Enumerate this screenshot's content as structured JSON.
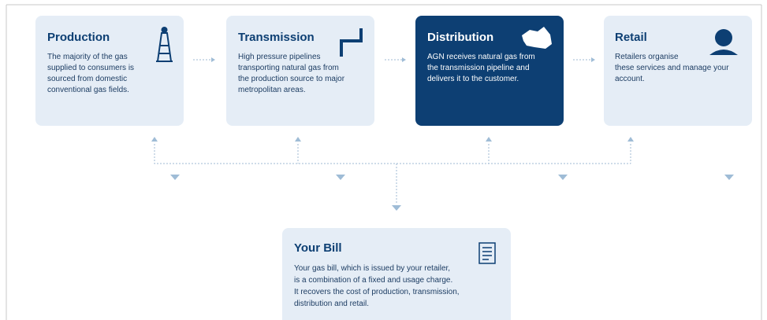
{
  "nodes": [
    {
      "title": "Production",
      "lines": [
        "The majority of the gas",
        "supplied to consumers is",
        "sourced from domestic",
        "conventional gas fields."
      ]
    },
    {
      "title": "Transmission",
      "lines": [
        "High pressure pipelines",
        "transporting natural gas from",
        "the production source to major",
        "metropolitan areas."
      ]
    },
    {
      "title": "Distribution",
      "lines": [
        "AGN receives natural gas from",
        "the transmission pipeline and",
        "delivers it to the customer."
      ]
    },
    {
      "title": "Retail",
      "lines": [
        "Retailers organise",
        "these services and manage your",
        "account."
      ]
    }
  ],
  "bill": {
    "title": "Your Bill",
    "lines": [
      "Your gas bill, which is issued by your retailer,",
      "is a combination of a fixed and usage charge.",
      "It recovers the cost of production, transmission,",
      "distribution and retail."
    ]
  }
}
